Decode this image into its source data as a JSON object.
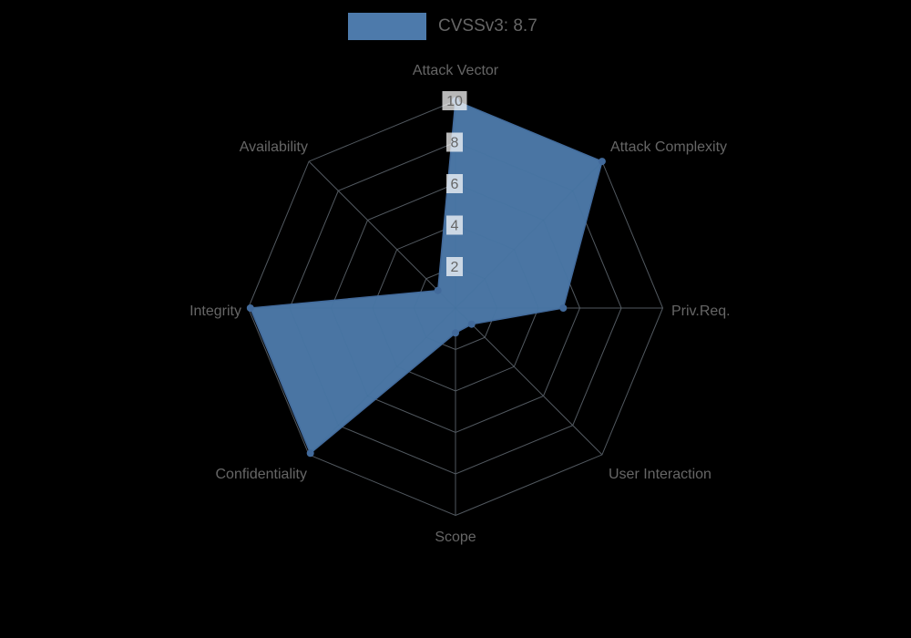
{
  "legend": {
    "dataset_label": "CVSSv3: 8.7",
    "swatch_color": "#4d7aab"
  },
  "chart_data": {
    "type": "radar",
    "title": "CVSSv3: 8.7",
    "categories": [
      "Attack Vector",
      "Attack Complexity",
      "Priv.Req.",
      "User Interaction",
      "Scope",
      "Confidentiality",
      "Integrity",
      "Availability"
    ],
    "series": [
      {
        "name": "CVSSv3: 8.7",
        "values": [
          10,
          10,
          5.2,
          1.1,
          1.2,
          9.9,
          9.9,
          1.2
        ]
      }
    ],
    "ticks": [
      2,
      4,
      6,
      8,
      10
    ],
    "rmin": 0,
    "rmax": 10,
    "grid": true,
    "legend_position": "top",
    "colors": {
      "fill": "#4d7aaa",
      "stroke": "#426a9b",
      "point": "#426a9b",
      "grid": "#525960",
      "grid_inner": "#44719e",
      "text": "#666666",
      "tick_backdrop": "rgba(255,255,255,0.72)",
      "background": "#000000"
    }
  }
}
